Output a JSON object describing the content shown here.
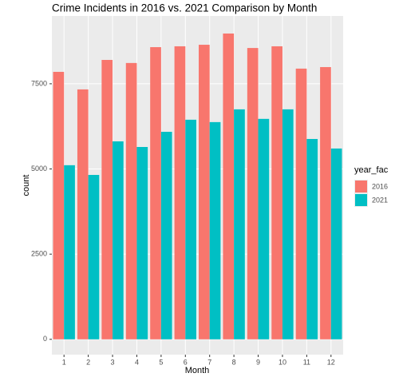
{
  "chart_data": {
    "type": "bar",
    "title": "Crime Incidents in 2016 vs. 2021 Comparison by Month",
    "x_label": "Month",
    "y_label": "count",
    "legend_title": "year_fac",
    "categories": [
      "1",
      "2",
      "3",
      "4",
      "5",
      "6",
      "7",
      "8",
      "9",
      "10",
      "11",
      "12"
    ],
    "series": [
      {
        "name": "2016",
        "color": "#F8766D",
        "values": [
          7850,
          7335,
          8200,
          8110,
          8575,
          8600,
          8645,
          8975,
          8550,
          8600,
          7945,
          7990
        ]
      },
      {
        "name": "2021",
        "color": "#00BFC4",
        "values": [
          5110,
          4825,
          5810,
          5645,
          6090,
          6445,
          6375,
          6750,
          6470,
          6750,
          5880,
          5600
        ]
      }
    ],
    "ylim": [
      -450,
      9490
    ],
    "yticks": [
      0,
      2500,
      5000,
      7500
    ],
    "grid": true
  }
}
